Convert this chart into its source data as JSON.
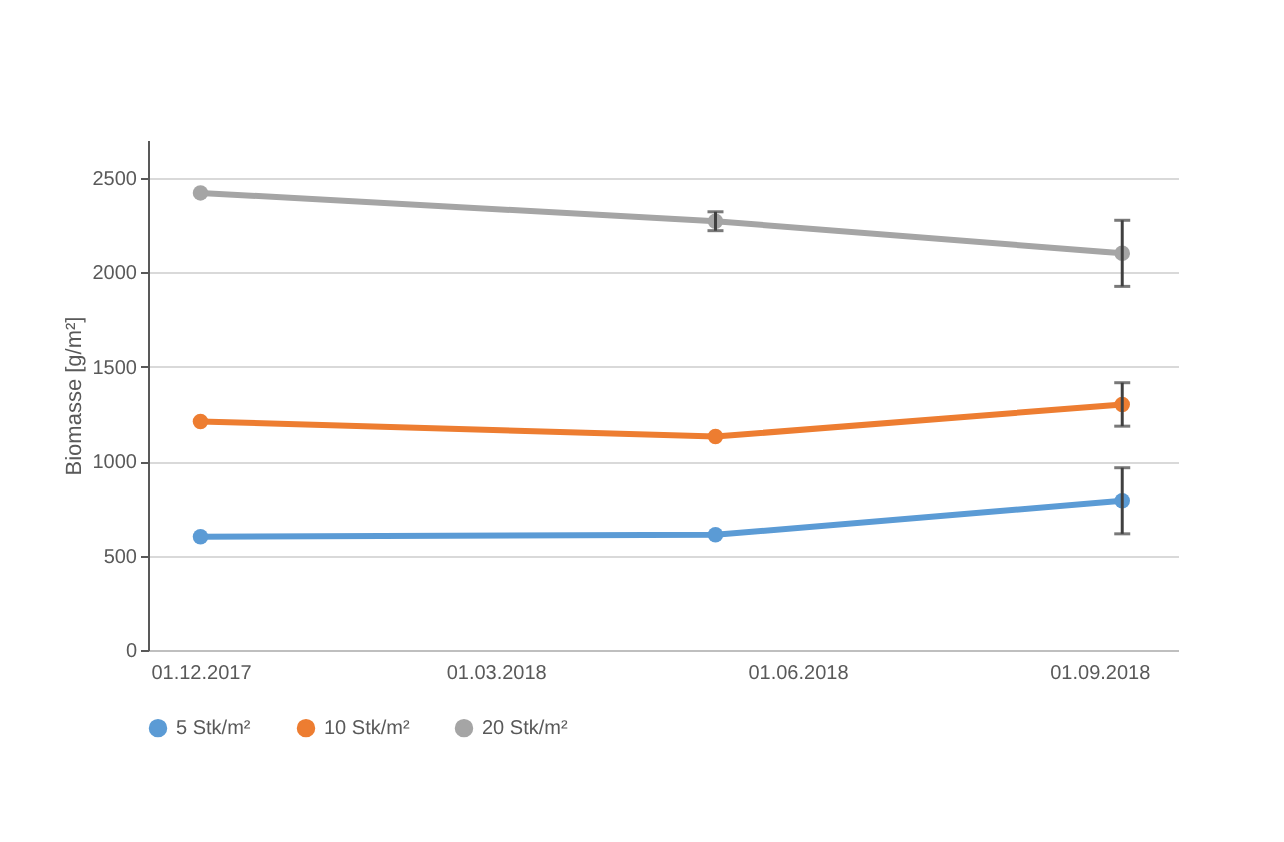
{
  "chart_data": {
    "type": "line",
    "ylabel": "Biomasse [g/m²]",
    "x": [
      "2017-12-01",
      "2018-05-07",
      "2018-09-08"
    ],
    "series": [
      {
        "name": "5 Stk/m²",
        "color": "#5b9bd5",
        "values": [
          600,
          610,
          790
        ],
        "errors": [
          null,
          null,
          175
        ]
      },
      {
        "name": "10 Stk/m²",
        "color": "#ed7d31",
        "values": [
          1210,
          1130,
          1300
        ],
        "errors": [
          null,
          null,
          115
        ]
      },
      {
        "name": "20 Stk/m²",
        "color": "#a5a5a5",
        "values": [
          2420,
          2270,
          2100
        ],
        "errors": [
          null,
          50,
          175
        ]
      }
    ],
    "xlim": [
      "2017-11-15",
      "2018-09-25"
    ],
    "xticks": [
      {
        "value": "2017-12-01",
        "label": "01.12.2017"
      },
      {
        "value": "2018-03-01",
        "label": "01.03.2018"
      },
      {
        "value": "2018-06-01",
        "label": "01.06.2018"
      },
      {
        "value": "2018-09-01",
        "label": "01.09.2018"
      }
    ],
    "ylim": [
      0,
      2700
    ],
    "yticks": [
      0,
      500,
      1000,
      1500,
      2000,
      2500
    ],
    "grid": "y",
    "legend": "bottom",
    "marker": "circle",
    "line_style": "solid"
  }
}
